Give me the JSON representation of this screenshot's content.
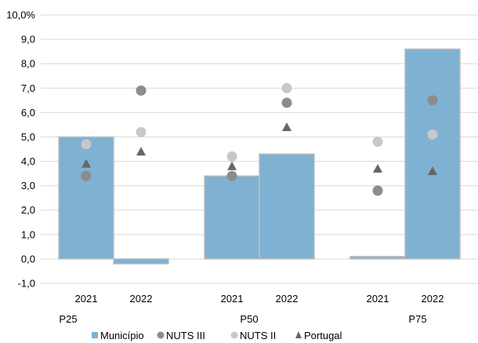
{
  "chart_data": {
    "type": "bar",
    "title": "",
    "xlabel": "",
    "ylabel": "",
    "ylim": [
      -1,
      10
    ],
    "y_ticks": [
      "-1,0",
      "0,0",
      "1,0",
      "2,0",
      "3,0",
      "4,0",
      "5,0",
      "6,0",
      "7,0",
      "8,0",
      "9,0",
      "10,0%"
    ],
    "grid": "horizontal",
    "groups": [
      "P25",
      "P50",
      "P75"
    ],
    "categories": [
      "2021",
      "2022",
      "2021",
      "2022",
      "2021",
      "2022"
    ],
    "category_group": [
      0,
      0,
      1,
      1,
      2,
      2
    ],
    "series": [
      {
        "name": "Município",
        "kind": "bar",
        "color": "#7fb1d3",
        "values": [
          5.0,
          -0.2,
          3.4,
          4.3,
          0.1,
          8.6
        ]
      },
      {
        "name": "NUTS III",
        "kind": "circle",
        "color": "#8c8c8c",
        "values": [
          3.4,
          6.9,
          3.4,
          6.4,
          2.8,
          6.5
        ]
      },
      {
        "name": "NUTS II",
        "kind": "circle",
        "color": "#c8c8c8",
        "values": [
          4.7,
          5.2,
          4.2,
          7.0,
          4.8,
          5.1
        ]
      },
      {
        "name": "Portugal",
        "kind": "triangle",
        "color": "#666666",
        "values": [
          3.9,
          4.4,
          3.8,
          5.4,
          3.7,
          3.6
        ]
      }
    ],
    "legend": {
      "position": "bottom",
      "items": [
        "Município",
        "NUTS III",
        "NUTS II",
        "Portugal"
      ]
    }
  }
}
